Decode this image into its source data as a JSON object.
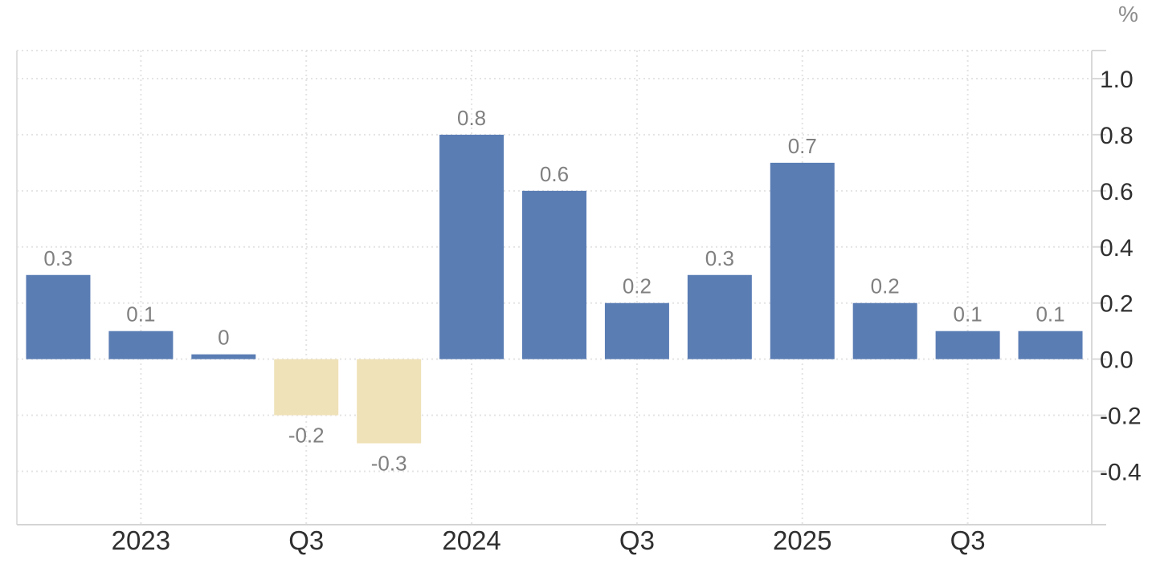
{
  "chart_data": {
    "type": "bar",
    "title": "",
    "xlabel": "",
    "ylabel": "%",
    "values": [
      0.3,
      0.1,
      0,
      -0.2,
      -0.3,
      0.8,
      0.6,
      0.2,
      0.3,
      0.7,
      0.2,
      0.1,
      0.1
    ],
    "bar_labels": [
      "0.3",
      "0.1",
      "0",
      "-0.2",
      "-0.3",
      "0.8",
      "0.6",
      "0.2",
      "0.3",
      "0.7",
      "0.2",
      "0.1",
      "0.1"
    ],
    "x_axis_labels": [
      {
        "text": "2023",
        "bar_index": 1
      },
      {
        "text": "Q3",
        "bar_index": 3
      },
      {
        "text": "2024",
        "bar_index": 5
      },
      {
        "text": "Q3",
        "bar_index": 7
      },
      {
        "text": "2025",
        "bar_index": 9
      },
      {
        "text": "Q3",
        "bar_index": 11
      }
    ],
    "y_axis_ticks": [
      {
        "value": 1.0,
        "label": "1.0"
      },
      {
        "value": 0.8,
        "label": "0.8"
      },
      {
        "value": 0.6,
        "label": "0.6"
      },
      {
        "value": 0.4,
        "label": "0.4"
      },
      {
        "value": 0.2,
        "label": "0.2"
      },
      {
        "value": 0.0,
        "label": "0.0"
      },
      {
        "value": -0.2,
        "label": "-0.2"
      },
      {
        "value": -0.4,
        "label": "-0.4"
      }
    ],
    "ylim": [
      -0.59,
      1.1
    ],
    "y_axis_position": "right",
    "grid": "dotted",
    "legend": "none",
    "colors": {
      "positive_bar": "#5a7db4",
      "negative_bar": "#efe2b8",
      "grid_line": "#e4e4e4",
      "axis_line": "#d9d9d9",
      "bottom_axis_line": "#d4d4d4",
      "left_border_line": "#e0e0e0",
      "value_label": "#808080",
      "axis_label": "#2f2f2f",
      "unit_label": "#8c8c8c",
      "background": "#ffffff"
    }
  }
}
